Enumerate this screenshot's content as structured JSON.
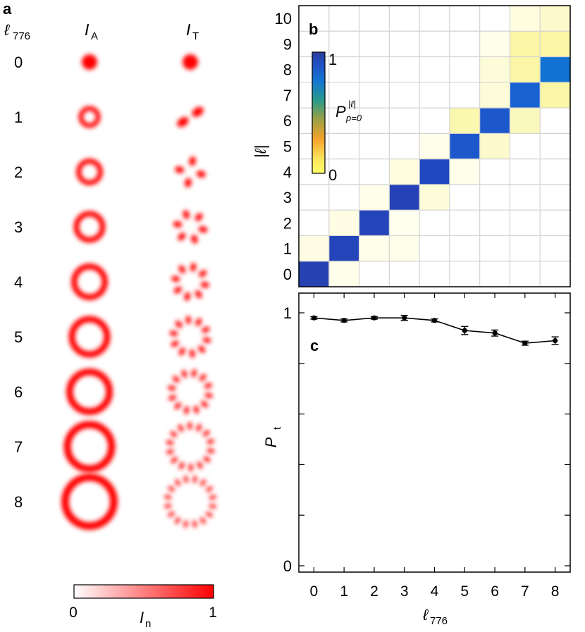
{
  "panel_a": {
    "label": "a",
    "row_header": "ℓ",
    "row_header_sub": "776",
    "col_a": "I",
    "col_a_sub": "A",
    "col_t": "I",
    "col_t_sub": "T",
    "rows": [
      "0",
      "1",
      "2",
      "3",
      "4",
      "5",
      "6",
      "7",
      "8"
    ],
    "colorbar": {
      "label": "I",
      "label_sub": "n",
      "min": "0",
      "max": "1",
      "low_color": "#ffffff",
      "high_color": "#ff0000"
    }
  },
  "chart_data": [
    {
      "type": "heatmap",
      "panel": "b",
      "label": "b",
      "ylabel": "|ℓ|",
      "x_categories": [
        0,
        1,
        2,
        3,
        4,
        5,
        6,
        7,
        8
      ],
      "y_ticks": [
        "0",
        "1",
        "2",
        "3",
        "4",
        "5",
        "6",
        "7",
        "8",
        "9",
        "10"
      ],
      "colorbar": {
        "label": "P",
        "superscript": "|ℓ|",
        "subscript": "p=0",
        "min": "0",
        "max": "1"
      },
      "matrix": [
        [
          0.95,
          0.03,
          0,
          0,
          0,
          0,
          0,
          0,
          0
        ],
        [
          0.04,
          0.93,
          0.03,
          0.03,
          0,
          0,
          0,
          0,
          0
        ],
        [
          0,
          0.04,
          0.93,
          0.02,
          0,
          0,
          0,
          0,
          0
        ],
        [
          0,
          0,
          0.03,
          0.94,
          0.06,
          0,
          0,
          0,
          0
        ],
        [
          0,
          0,
          0,
          0.05,
          0.91,
          0.03,
          0,
          0,
          0
        ],
        [
          0,
          0,
          0,
          0,
          0.03,
          0.88,
          0.08,
          0,
          0
        ],
        [
          0,
          0,
          0,
          0,
          0,
          0.12,
          0.88,
          0.1,
          0
        ],
        [
          0,
          0,
          0,
          0,
          0,
          0,
          0.06,
          0.85,
          0.13
        ],
        [
          0,
          0,
          0,
          0,
          0,
          0,
          0.06,
          0.13,
          0.8
        ],
        [
          0,
          0,
          0,
          0,
          0,
          0,
          0.03,
          0.13,
          0.13
        ],
        [
          0,
          0,
          0,
          0,
          0,
          0,
          0,
          0.05,
          0.08
        ]
      ]
    },
    {
      "type": "line",
      "panel": "c",
      "label": "c",
      "xlabel": "ℓ",
      "xlabel_sub": "776",
      "ylabel": "P",
      "ylabel_sub": "t",
      "x": [
        0,
        1,
        2,
        3,
        4,
        5,
        6,
        7,
        8
      ],
      "y": [
        0.98,
        0.97,
        0.98,
        0.98,
        0.97,
        0.93,
        0.92,
        0.88,
        0.89
      ],
      "error": [
        0.005,
        0.006,
        0.005,
        0.01,
        0.006,
        0.016,
        0.012,
        0.008,
        0.015
      ],
      "y_ticks": [
        {
          "v": 0,
          "label": "0"
        },
        {
          "v": 1,
          "label": "1"
        }
      ],
      "ylim": [
        0,
        1
      ],
      "series_color": "#000000"
    }
  ]
}
